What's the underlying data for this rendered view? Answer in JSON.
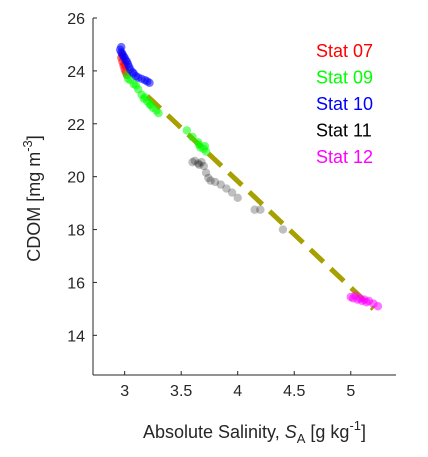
{
  "chart_data": {
    "type": "scatter",
    "title": "",
    "xlabel": {
      "prefix": "Absolute Salinity, ",
      "symbol": "S",
      "symbol_sub": "A",
      "units_open": " [g kg",
      "units_sup": "-1",
      "units_close": "]"
    },
    "ylabel": {
      "text": "CDOM [mg m",
      "sup": "-3",
      "close": "]"
    },
    "xlim": [
      2.72,
      5.4
    ],
    "ylim": [
      12.5,
      26
    ],
    "xticks": [
      3,
      3.5,
      4,
      4.5,
      5
    ],
    "xtick_labels": [
      "3",
      "3.5",
      "4",
      "4.5",
      "5"
    ],
    "yticks": [
      14,
      16,
      18,
      20,
      22,
      24,
      26
    ],
    "ytick_labels": [
      "14",
      "16",
      "18",
      "20",
      "22",
      "24",
      "26"
    ],
    "grid": false,
    "legend_position": "top-right",
    "series": [
      {
        "name": "Stat 07",
        "color": "#ff0000",
        "points": [
          [
            2.97,
            24.5
          ],
          [
            2.98,
            24.35
          ],
          [
            2.99,
            24.2
          ],
          [
            3.0,
            24.05
          ],
          [
            3.01,
            23.95
          ],
          [
            3.02,
            23.85
          ],
          [
            3.0,
            24.25
          ],
          [
            2.98,
            24.6
          ]
        ]
      },
      {
        "name": "Stat 09",
        "color": "#00ff00",
        "points": [
          [
            3.02,
            23.85
          ],
          [
            3.03,
            23.7
          ],
          [
            3.05,
            23.65
          ],
          [
            3.08,
            23.5
          ],
          [
            3.1,
            23.45
          ],
          [
            3.12,
            23.3
          ],
          [
            3.15,
            23.1
          ],
          [
            3.17,
            22.95
          ],
          [
            3.2,
            22.85
          ],
          [
            3.22,
            22.75
          ],
          [
            3.25,
            22.6
          ],
          [
            3.28,
            22.5
          ],
          [
            3.3,
            22.4
          ],
          [
            3.18,
            23.0
          ],
          [
            3.23,
            22.7
          ],
          [
            3.55,
            21.75
          ],
          [
            3.6,
            21.5
          ],
          [
            3.65,
            21.3
          ],
          [
            3.67,
            21.1
          ],
          [
            3.7,
            21.05
          ],
          [
            3.72,
            20.95
          ],
          [
            3.66,
            21.2
          ],
          [
            3.71,
            21.15
          ]
        ]
      },
      {
        "name": "Stat 10",
        "color": "#0000ff",
        "points": [
          [
            2.96,
            24.8
          ],
          [
            2.97,
            24.7
          ],
          [
            2.98,
            24.65
          ],
          [
            2.99,
            24.55
          ],
          [
            3.0,
            24.5
          ],
          [
            3.01,
            24.4
          ],
          [
            3.02,
            24.35
          ],
          [
            3.03,
            24.25
          ],
          [
            3.04,
            24.15
          ],
          [
            3.05,
            24.05
          ],
          [
            3.07,
            23.95
          ],
          [
            3.08,
            23.9
          ],
          [
            3.1,
            23.8
          ],
          [
            3.12,
            23.75
          ],
          [
            3.15,
            23.7
          ],
          [
            3.18,
            23.65
          ],
          [
            3.2,
            23.6
          ],
          [
            3.22,
            23.55
          ],
          [
            2.97,
            24.9
          ]
        ]
      },
      {
        "name": "Stat 11",
        "color": "#000000",
        "points": [
          [
            3.6,
            20.55
          ],
          [
            3.62,
            20.6
          ],
          [
            3.65,
            20.5
          ],
          [
            3.66,
            20.45
          ],
          [
            3.68,
            20.55
          ],
          [
            3.7,
            20.4
          ],
          [
            3.72,
            20.15
          ],
          [
            3.74,
            19.95
          ],
          [
            3.76,
            19.85
          ],
          [
            3.8,
            19.8
          ],
          [
            3.85,
            19.7
          ],
          [
            3.9,
            19.55
          ],
          [
            3.95,
            19.4
          ],
          [
            4.0,
            19.2
          ],
          [
            4.15,
            18.75
          ],
          [
            4.2,
            18.75
          ],
          [
            4.4,
            18.0
          ]
        ]
      },
      {
        "name": "Stat 12",
        "color": "#ff00ff",
        "points": [
          [
            5.0,
            15.45
          ],
          [
            5.02,
            15.4
          ],
          [
            5.04,
            15.5
          ],
          [
            5.06,
            15.35
          ],
          [
            5.08,
            15.4
          ],
          [
            5.1,
            15.3
          ],
          [
            5.12,
            15.35
          ],
          [
            5.14,
            15.25
          ],
          [
            5.16,
            15.3
          ],
          [
            5.2,
            15.2
          ],
          [
            5.24,
            15.1
          ]
        ]
      }
    ],
    "fit_line": {
      "color": "#a6a000",
      "style": "dashed",
      "from": [
        3.2,
        23.05
      ],
      "to": [
        5.2,
        15.0
      ]
    }
  }
}
